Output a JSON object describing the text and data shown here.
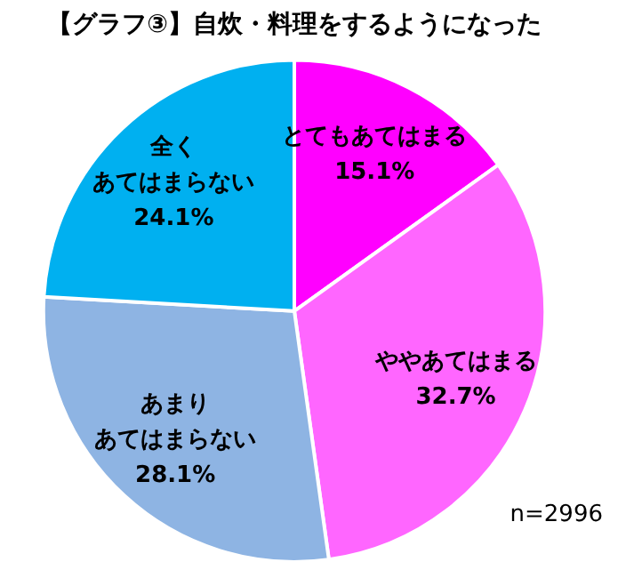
{
  "chart_data": {
    "type": "pie",
    "title": "【グラフ③】自炊・料理をするようになった",
    "categories": [
      "とてもあてはまる",
      "ややあてはまる",
      "あまりあてはまらない",
      "全くあてはまらない"
    ],
    "values": [
      15.1,
      32.7,
      28.1,
      24.1
    ],
    "colors": [
      "#ff00ff",
      "#ff66ff",
      "#8eb4e3",
      "#00b0f0"
    ],
    "value_labels": [
      "15.1%",
      "32.7%",
      "28.1%",
      "24.1%"
    ],
    "annotations": [
      "n=2996"
    ],
    "legend": false
  }
}
